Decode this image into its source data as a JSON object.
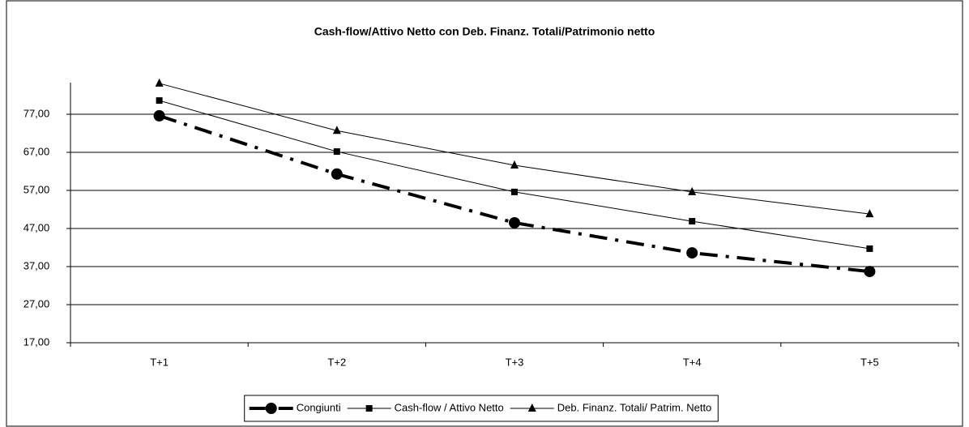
{
  "chart_data": {
    "type": "line",
    "title": "Cash-flow/Attivo Netto con Deb. Finanz. Totali/Patrimonio netto",
    "categories": [
      "T+1",
      "T+2",
      "T+3",
      "T+4",
      "T+5"
    ],
    "series": [
      {
        "name": "Congiunti",
        "color": "#000000",
        "marker": "circle",
        "dash": "dashdot",
        "values": [
          76.6,
          61.3,
          48.5,
          40.6,
          35.7
        ]
      },
      {
        "name": "Cash-flow / Attivo Netto",
        "color": "#000000",
        "marker": "square",
        "dash": "solid",
        "values": [
          80.6,
          67.2,
          56.6,
          48.9,
          41.7
        ]
      },
      {
        "name": "Deb. Finanz. Totali/ Patrim. Netto",
        "color": "#000000",
        "marker": "triangle",
        "dash": "solid",
        "values": [
          85.1,
          72.7,
          63.6,
          56.6,
          50.8
        ]
      }
    ],
    "ylim": [
      17,
      87
    ],
    "yticks": [
      {
        "value": 17,
        "label": "17,00"
      },
      {
        "value": 27,
        "label": "27,00"
      },
      {
        "value": 37,
        "label": "37,00"
      },
      {
        "value": 47,
        "label": "47,00"
      },
      {
        "value": 57,
        "label": "57,00"
      },
      {
        "value": 67,
        "label": "67,00"
      },
      {
        "value": 77,
        "label": "77,00"
      }
    ],
    "grid": true,
    "legend": "bottom"
  }
}
